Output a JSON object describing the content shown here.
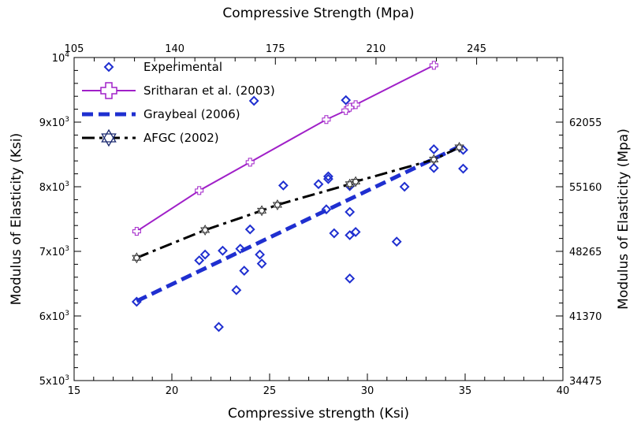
{
  "chart_data": {
    "type": "scatter",
    "title": "",
    "xlabel": "Compressive strength (Ksi)",
    "ylabel": "Modulus of Elasticity (Ksi)",
    "x2label": "Compressive Strength (Mpa)",
    "y2label": "Modulus of Elasticity (Mpa)",
    "xlim": [
      15,
      40
    ],
    "ylim": [
      5000,
      10000
    ],
    "x2lim": [
      105,
      275
    ],
    "x_ticks": [
      "15",
      "20",
      "25",
      "30",
      "35",
      "40"
    ],
    "y_ticks": [
      {
        "base": "5x10",
        "exp": "3"
      },
      {
        "base": "6x10",
        "exp": "3"
      },
      {
        "base": "7x10",
        "exp": "3"
      },
      {
        "base": "8x10",
        "exp": "3"
      },
      {
        "base": "9x10",
        "exp": "3"
      },
      {
        "base": "10",
        "exp": "4"
      }
    ],
    "x2_ticks": [
      {
        "value": 105,
        "label": "105"
      },
      {
        "value": 140,
        "label": "140"
      },
      {
        "value": 175,
        "label": "175"
      },
      {
        "value": 210,
        "label": "210"
      },
      {
        "value": 245,
        "label": "245"
      }
    ],
    "y2_ticks": [
      {
        "value": 5000,
        "label": "34475"
      },
      {
        "value": 6000,
        "label": "41370"
      },
      {
        "value": 7000,
        "label": "48265"
      },
      {
        "value": 8000,
        "label": "55160"
      },
      {
        "value": 9000,
        "label": "62055"
      }
    ],
    "legend_position": "top-left",
    "grid": false,
    "series": [
      {
        "name": "Experimental",
        "style": "markers",
        "marker": "diamond",
        "color": "#1f2fd0",
        "points": [
          [
            18.2,
            6220
          ],
          [
            21.4,
            6860
          ],
          [
            21.7,
            6950
          ],
          [
            22.4,
            5830
          ],
          [
            22.6,
            7010
          ],
          [
            23.3,
            6400
          ],
          [
            23.5,
            7040
          ],
          [
            23.7,
            6700
          ],
          [
            24.0,
            7340
          ],
          [
            24.5,
            6950
          ],
          [
            24.6,
            6810
          ],
          [
            24.2,
            9330
          ],
          [
            25.7,
            8020
          ],
          [
            27.5,
            8040
          ],
          [
            27.9,
            7650
          ],
          [
            28.0,
            8160
          ],
          [
            28.0,
            8120
          ],
          [
            28.3,
            7280
          ],
          [
            28.9,
            9340
          ],
          [
            29.1,
            7610
          ],
          [
            29.1,
            7250
          ],
          [
            29.1,
            6580
          ],
          [
            29.4,
            7300
          ],
          [
            29.1,
            8010
          ],
          [
            31.5,
            7150
          ],
          [
            31.9,
            8000
          ],
          [
            33.4,
            8580
          ],
          [
            33.4,
            8290
          ],
          [
            34.9,
            8570
          ],
          [
            34.9,
            8280
          ]
        ]
      },
      {
        "name": "Sritharan et al. (2003)",
        "style": "line",
        "marker": "cross",
        "color": "#a020c8",
        "points": [
          [
            18.2,
            7310
          ],
          [
            21.4,
            7940
          ],
          [
            24.0,
            8380
          ],
          [
            27.9,
            9040
          ],
          [
            28.9,
            9180
          ],
          [
            29.1,
            9230
          ],
          [
            29.4,
            9270
          ],
          [
            33.4,
            9880
          ]
        ]
      },
      {
        "name": "Graybeal (2006)",
        "style": "dashed",
        "marker": "none",
        "color": "#1f2fd0",
        "points": [
          [
            18.2,
            6230
          ],
          [
            34.7,
            8620
          ]
        ]
      },
      {
        "name": "AFGC (2002)",
        "style": "dashdot",
        "marker": "star",
        "color": "#000000",
        "points": [
          [
            18.2,
            6900
          ],
          [
            21.7,
            7330
          ],
          [
            24.6,
            7630
          ],
          [
            25.4,
            7720
          ],
          [
            29.1,
            8040
          ],
          [
            29.4,
            8080
          ],
          [
            33.4,
            8420
          ],
          [
            34.7,
            8610
          ]
        ]
      }
    ]
  }
}
